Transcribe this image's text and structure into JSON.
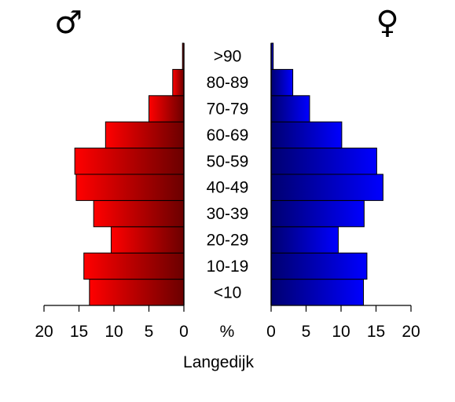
{
  "chart_data": {
    "type": "bar",
    "orientation": "horizontal",
    "layout": "population-pyramid",
    "title": "Langedijk",
    "unit_label": "%",
    "categories": [
      "<10",
      "10-19",
      "20-29",
      "30-39",
      "40-49",
      "50-59",
      "60-69",
      "70-79",
      "80-89",
      ">90"
    ],
    "series": [
      {
        "name": "♂",
        "side": "left",
        "color": "#ff0000",
        "color_dark": "#6b0000",
        "values": [
          13.5,
          14.3,
          10.4,
          12.9,
          15.4,
          15.6,
          11.2,
          5.0,
          1.6,
          0.2
        ]
      },
      {
        "name": "♀",
        "side": "right",
        "color": "#0000ff",
        "color_dark": "#000070",
        "values": [
          13.2,
          13.7,
          9.6,
          13.3,
          16.0,
          15.1,
          10.1,
          5.5,
          3.1,
          0.3
        ]
      }
    ],
    "xlim": [
      0,
      20
    ],
    "left_ticks": [
      "20",
      "15",
      "10",
      "5",
      "0"
    ],
    "right_ticks": [
      "0",
      "5",
      "10",
      "15",
      "20"
    ],
    "grid": false,
    "legend": "none"
  }
}
